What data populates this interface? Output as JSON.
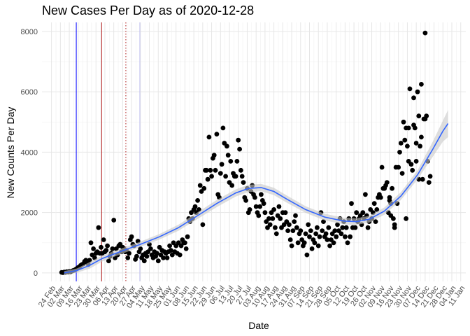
{
  "chart_data": {
    "type": "scatter",
    "title": "New Cases Per Day as of 2020-12-28",
    "xlabel": "Date",
    "ylabel": "New Counts Per Day",
    "ylim": [
      -280,
      8300
    ],
    "yticks": [
      0,
      2000,
      4000,
      6000,
      8000
    ],
    "ytick_labels": [
      "0",
      "2000",
      "4000",
      "6000",
      "8000"
    ],
    "xlim_days": [
      -7.5,
      326
    ],
    "x_origin_date": "2020-02-24",
    "xtick_days": [
      0,
      7,
      14,
      21,
      28,
      35,
      42,
      49,
      56,
      63,
      70,
      77,
      84,
      91,
      98,
      105,
      112,
      119,
      126,
      133,
      140,
      147,
      154,
      161,
      168,
      175,
      182,
      189,
      196,
      203,
      210,
      217,
      224,
      231,
      238,
      245,
      252,
      259,
      266,
      273,
      280,
      287,
      294,
      301,
      308,
      315,
      322
    ],
    "xtick_labels": [
      "24 Feb",
      "02 Mar",
      "09 Mar",
      "16 Mar",
      "23 Mar",
      "30 Mar",
      "06 Apr",
      "13 Apr",
      "20 Apr",
      "27 Apr",
      "04 May",
      "11 May",
      "18 May",
      "25 May",
      "01 Jun",
      "08 Jun",
      "15 Jun",
      "22 Jun",
      "29 Jun",
      "06 Jul",
      "13 Jul",
      "20 Jul",
      "27 Jul",
      "03 Aug",
      "10 Aug",
      "17 Aug",
      "24 Aug",
      "31 Aug",
      "07 Sep",
      "14 Sep",
      "21 Sep",
      "28 Sep",
      "05 Oct",
      "12 Oct",
      "19 Oct",
      "26 Oct",
      "02 Nov",
      "09 Nov",
      "16 Nov",
      "23 Nov",
      "30 Nov",
      "07 Dec",
      "14 Dec",
      "21 Dec",
      "28 Dec",
      "04 Jan",
      "11 Jan"
    ],
    "vlines": [
      {
        "day": 19.5,
        "color": "#0000ff",
        "style": "solid"
      },
      {
        "day": 39.5,
        "color": "#b22222",
        "style": "solid"
      },
      {
        "day": 58.5,
        "color": "#b22222",
        "style": "dotted"
      },
      {
        "day": 69.5,
        "color": "#bfbfef",
        "style": "solid"
      }
    ],
    "points_color": "#000000",
    "smooth_color": "#3366ff",
    "band_color": "#c8c8c8",
    "smooth": [
      {
        "day": 10,
        "y": 0,
        "lo": -60,
        "hi": 60
      },
      {
        "day": 20,
        "y": 80,
        "lo": 10,
        "hi": 150
      },
      {
        "day": 30,
        "y": 250,
        "lo": 140,
        "hi": 360
      },
      {
        "day": 40,
        "y": 480,
        "lo": 380,
        "hi": 580
      },
      {
        "day": 55,
        "y": 720,
        "lo": 630,
        "hi": 810
      },
      {
        "day": 70,
        "y": 950,
        "lo": 860,
        "hi": 1040
      },
      {
        "day": 85,
        "y": 1200,
        "lo": 1110,
        "hi": 1290
      },
      {
        "day": 100,
        "y": 1500,
        "lo": 1400,
        "hi": 1600
      },
      {
        "day": 115,
        "y": 1900,
        "lo": 1790,
        "hi": 2010
      },
      {
        "day": 130,
        "y": 2300,
        "lo": 2180,
        "hi": 2420
      },
      {
        "day": 145,
        "y": 2650,
        "lo": 2530,
        "hi": 2770
      },
      {
        "day": 155,
        "y": 2800,
        "lo": 2680,
        "hi": 2920
      },
      {
        "day": 165,
        "y": 2830,
        "lo": 2710,
        "hi": 2950
      },
      {
        "day": 175,
        "y": 2700,
        "lo": 2580,
        "hi": 2820
      },
      {
        "day": 185,
        "y": 2450,
        "lo": 2330,
        "hi": 2570
      },
      {
        "day": 200,
        "y": 2100,
        "lo": 1990,
        "hi": 2210
      },
      {
        "day": 215,
        "y": 1850,
        "lo": 1740,
        "hi": 1960
      },
      {
        "day": 230,
        "y": 1720,
        "lo": 1610,
        "hi": 1830
      },
      {
        "day": 240,
        "y": 1700,
        "lo": 1590,
        "hi": 1810
      },
      {
        "day": 250,
        "y": 1780,
        "lo": 1670,
        "hi": 1890
      },
      {
        "day": 262,
        "y": 2050,
        "lo": 1930,
        "hi": 2170
      },
      {
        "day": 275,
        "y": 2550,
        "lo": 2420,
        "hi": 2680
      },
      {
        "day": 288,
        "y": 3250,
        "lo": 3100,
        "hi": 3400
      },
      {
        "day": 300,
        "y": 4100,
        "lo": 3850,
        "hi": 4350
      },
      {
        "day": 308,
        "y": 4700,
        "lo": 4350,
        "hi": 5050
      },
      {
        "day": 312,
        "y": 4950,
        "lo": 4500,
        "hi": 5400
      }
    ],
    "points": [
      [
        8,
        20
      ],
      [
        9,
        10
      ],
      [
        10,
        30
      ],
      [
        11,
        20
      ],
      [
        12,
        40
      ],
      [
        13,
        30
      ],
      [
        14,
        50
      ],
      [
        15,
        40
      ],
      [
        16,
        60
      ],
      [
        17,
        80
      ],
      [
        18,
        90
      ],
      [
        19,
        120
      ],
      [
        20,
        150
      ],
      [
        21,
        180
      ],
      [
        22,
        200
      ],
      [
        23,
        250
      ],
      [
        24,
        280
      ],
      [
        25,
        300
      ],
      [
        26,
        380
      ],
      [
        27,
        420
      ],
      [
        28,
        350
      ],
      [
        29,
        280
      ],
      [
        30,
        420
      ],
      [
        31,
        1000
      ],
      [
        32,
        600
      ],
      [
        33,
        800
      ],
      [
        34,
        500
      ],
      [
        35,
        650
      ],
      [
        36,
        700
      ],
      [
        37,
        1500
      ],
      [
        38,
        650
      ],
      [
        39,
        850
      ],
      [
        40,
        650
      ],
      [
        41,
        1100
      ],
      [
        42,
        700
      ],
      [
        43,
        750
      ],
      [
        44,
        900
      ],
      [
        45,
        400
      ],
      [
        46,
        550
      ],
      [
        47,
        650
      ],
      [
        48,
        800
      ],
      [
        49,
        1750
      ],
      [
        50,
        500
      ],
      [
        51,
        800
      ],
      [
        52,
        600
      ],
      [
        53,
        900
      ],
      [
        54,
        950
      ],
      [
        55,
        700
      ],
      [
        56,
        850
      ],
      [
        57,
        800
      ],
      [
        58,
        700
      ],
      [
        59,
        750
      ],
      [
        60,
        500
      ],
      [
        61,
        650
      ],
      [
        62,
        1100
      ],
      [
        63,
        1200
      ],
      [
        64,
        950
      ],
      [
        65,
        900
      ],
      [
        66,
        450
      ],
      [
        67,
        550
      ],
      [
        68,
        1050
      ],
      [
        69,
        700
      ],
      [
        70,
        800
      ],
      [
        71,
        500
      ],
      [
        72,
        600
      ],
      [
        73,
        400
      ],
      [
        74,
        650
      ],
      [
        75,
        550
      ],
      [
        76,
        700
      ],
      [
        77,
        950
      ],
      [
        78,
        800
      ],
      [
        79,
        600
      ],
      [
        80,
        500
      ],
      [
        81,
        700
      ],
      [
        82,
        550
      ],
      [
        83,
        650
      ],
      [
        84,
        400
      ],
      [
        85,
        850
      ],
      [
        86,
        600
      ],
      [
        87,
        750
      ],
      [
        88,
        500
      ],
      [
        89,
        700
      ],
      [
        90,
        650
      ],
      [
        91,
        500
      ],
      [
        92,
        700
      ],
      [
        93,
        900
      ],
      [
        94,
        750
      ],
      [
        95,
        600
      ],
      [
        96,
        1000
      ],
      [
        97,
        700
      ],
      [
        98,
        900
      ],
      [
        99,
        650
      ],
      [
        100,
        1000
      ],
      [
        101,
        600
      ],
      [
        102,
        900
      ],
      [
        103,
        1100
      ],
      [
        104,
        1000
      ],
      [
        105,
        1000
      ],
      [
        106,
        800
      ],
      [
        107,
        1200
      ],
      [
        108,
        1800
      ],
      [
        109,
        1700
      ],
      [
        110,
        2000
      ],
      [
        111,
        1800
      ],
      [
        112,
        2100
      ],
      [
        113,
        2200
      ],
      [
        114,
        2000
      ],
      [
        115,
        2400
      ],
      [
        116,
        2100
      ],
      [
        117,
        2900
      ],
      [
        118,
        2700
      ],
      [
        119,
        1600
      ],
      [
        120,
        2800
      ],
      [
        121,
        3400
      ],
      [
        122,
        3400
      ],
      [
        123,
        3100
      ],
      [
        124,
        4500
      ],
      [
        125,
        3400
      ],
      [
        126,
        3200
      ],
      [
        127,
        3800
      ],
      [
        128,
        3900
      ],
      [
        129,
        3400
      ],
      [
        130,
        4600
      ],
      [
        131,
        2600
      ],
      [
        132,
        2500
      ],
      [
        133,
        3300
      ],
      [
        134,
        3600
      ],
      [
        135,
        4800
      ],
      [
        136,
        4300
      ],
      [
        137,
        3200
      ],
      [
        138,
        4200
      ],
      [
        139,
        3900
      ],
      [
        140,
        3000
      ],
      [
        141,
        3700
      ],
      [
        142,
        2900
      ],
      [
        143,
        3300
      ],
      [
        144,
        3200
      ],
      [
        145,
        3200
      ],
      [
        146,
        3700
      ],
      [
        147,
        4400
      ],
      [
        148,
        4100
      ],
      [
        149,
        3400
      ],
      [
        150,
        3200
      ],
      [
        151,
        3000
      ],
      [
        152,
        2500
      ],
      [
        153,
        2400
      ],
      [
        154,
        2800
      ],
      [
        155,
        2000
      ],
      [
        156,
        2100
      ],
      [
        157,
        2700
      ],
      [
        158,
        2900
      ],
      [
        159,
        2600
      ],
      [
        160,
        2500
      ],
      [
        161,
        2200
      ],
      [
        162,
        2000
      ],
      [
        163,
        1900
      ],
      [
        164,
        2200
      ],
      [
        165,
        2600
      ],
      [
        166,
        2400
      ],
      [
        167,
        2300
      ],
      [
        168,
        2000
      ],
      [
        169,
        1700
      ],
      [
        170,
        1500
      ],
      [
        171,
        1800
      ],
      [
        172,
        1600
      ],
      [
        173,
        2000
      ],
      [
        174,
        1800
      ],
      [
        175,
        2100
      ],
      [
        176,
        1500
      ],
      [
        177,
        1300
      ],
      [
        178,
        1900
      ],
      [
        179,
        2200
      ],
      [
        180,
        1800
      ],
      [
        181,
        1500
      ],
      [
        182,
        2000
      ],
      [
        183,
        1600
      ],
      [
        184,
        2000
      ],
      [
        185,
        1700
      ],
      [
        186,
        1400
      ],
      [
        187,
        1600
      ],
      [
        188,
        1100
      ],
      [
        189,
        900
      ],
      [
        190,
        1400
      ],
      [
        191,
        1700
      ],
      [
        192,
        1900
      ],
      [
        193,
        1500
      ],
      [
        194,
        1000
      ],
      [
        195,
        1300
      ],
      [
        196,
        1400
      ],
      [
        197,
        1100
      ],
      [
        198,
        900
      ],
      [
        199,
        1000
      ],
      [
        200,
        1300
      ],
      [
        201,
        600
      ],
      [
        202,
        1600
      ],
      [
        203,
        1200
      ],
      [
        204,
        1400
      ],
      [
        205,
        800
      ],
      [
        206,
        1100
      ],
      [
        207,
        1000
      ],
      [
        208,
        1300
      ],
      [
        209,
        1500
      ],
      [
        210,
        900
      ],
      [
        211,
        1200
      ],
      [
        212,
        2000
      ],
      [
        213,
        1400
      ],
      [
        214,
        1700
      ],
      [
        215,
        1200
      ],
      [
        216,
        1300
      ],
      [
        217,
        1100
      ],
      [
        218,
        1500
      ],
      [
        219,
        900
      ],
      [
        220,
        1100
      ],
      [
        221,
        1300
      ],
      [
        222,
        1000
      ],
      [
        223,
        1400
      ],
      [
        224,
        1200
      ],
      [
        225,
        1600
      ],
      [
        226,
        1400
      ],
      [
        227,
        1800
      ],
      [
        228,
        1300
      ],
      [
        229,
        1500
      ],
      [
        230,
        1700
      ],
      [
        231,
        1200
      ],
      [
        232,
        1500
      ],
      [
        233,
        1000
      ],
      [
        234,
        1800
      ],
      [
        235,
        1200
      ],
      [
        236,
        2300
      ],
      [
        237,
        1500
      ],
      [
        238,
        1800
      ],
      [
        239,
        1500
      ],
      [
        240,
        2000
      ],
      [
        241,
        1700
      ],
      [
        242,
        1800
      ],
      [
        243,
        1900
      ],
      [
        244,
        1600
      ],
      [
        245,
        2000
      ],
      [
        246,
        1800
      ],
      [
        247,
        2600
      ],
      [
        248,
        1900
      ],
      [
        249,
        1500
      ],
      [
        250,
        1700
      ],
      [
        251,
        2100
      ],
      [
        252,
        1800
      ],
      [
        253,
        2000
      ],
      [
        254,
        2300
      ],
      [
        255,
        1700
      ],
      [
        256,
        2100
      ],
      [
        257,
        2500
      ],
      [
        258,
        2600
      ],
      [
        259,
        2500
      ],
      [
        260,
        3500
      ],
      [
        261,
        2800
      ],
      [
        262,
        2800
      ],
      [
        263,
        2900
      ],
      [
        264,
        3000
      ],
      [
        265,
        2000
      ],
      [
        266,
        2500
      ],
      [
        267,
        2300
      ],
      [
        268,
        2800
      ],
      [
        269,
        1800
      ],
      [
        270,
        1600
      ],
      [
        271,
        3500
      ],
      [
        272,
        2300
      ],
      [
        273,
        3500
      ],
      [
        274,
        4000
      ],
      [
        275,
        4300
      ],
      [
        276,
        3300
      ],
      [
        277,
        5000
      ],
      [
        278,
        4400
      ],
      [
        279,
        4800
      ],
      [
        280,
        4200
      ],
      [
        281,
        4800
      ],
      [
        282,
        6100
      ],
      [
        283,
        3600
      ],
      [
        284,
        3400
      ],
      [
        285,
        5800
      ],
      [
        286,
        4800
      ],
      [
        287,
        4300
      ],
      [
        288,
        6000
      ],
      [
        289,
        5200
      ],
      [
        290,
        4200
      ],
      [
        291,
        6250
      ],
      [
        292,
        3100
      ],
      [
        293,
        5100
      ],
      [
        294,
        7950
      ],
      [
        295,
        5200
      ],
      [
        296,
        3700
      ],
      [
        297,
        3000
      ],
      [
        298,
        3200
      ],
      [
        266,
        2400
      ],
      [
        267,
        1900
      ],
      [
        270,
        1500
      ],
      [
        279,
        1800
      ],
      [
        281,
        3700
      ],
      [
        285,
        4900
      ],
      [
        287,
        3700
      ],
      [
        289,
        3100
      ],
      [
        291,
        4500
      ],
      [
        294,
        5100
      ]
    ]
  }
}
